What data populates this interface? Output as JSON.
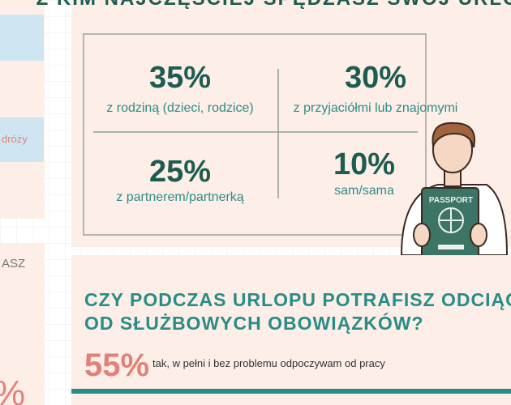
{
  "survey_title": "Z KIM NAJCZĘŚCIEJ SPĘDZASZ SWÓJ URLOP?",
  "side_fragments": [
    "dróży",
    "ASZ",
    "%"
  ],
  "stats": [
    {
      "value": "35%",
      "label": "z rodziną (dzieci, rodzice)"
    },
    {
      "value": "30%",
      "label": "z przyjaciółmi lub znajomymi"
    },
    {
      "value": "25%",
      "label": "z partnerem/partnerką"
    },
    {
      "value": "10%",
      "label": "sam/sama"
    }
  ],
  "illustration": {
    "passport_text": "PASSPORT"
  },
  "question": {
    "lines": [
      "CZY PODCZAS URLOPU POTRAFISZ ODCIĄĆ SIĘ",
      "OD SŁUŻBOWYCH OBOWIĄZKÓW?"
    ],
    "answers": [
      {
        "value": "55%",
        "label": "tak, w pełni i bez problemu odpoczywam od pracy"
      }
    ]
  }
}
